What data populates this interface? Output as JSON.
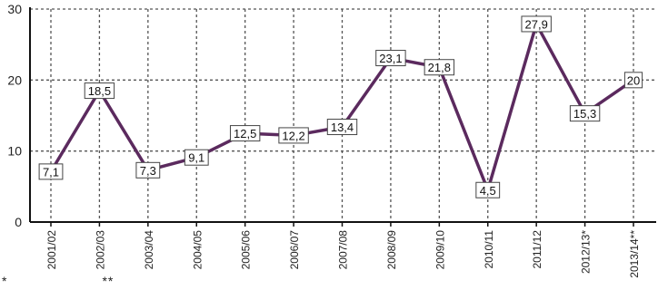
{
  "chart_data": {
    "type": "line",
    "title": "",
    "xlabel": "",
    "ylabel": "",
    "categories": [
      "2001/02",
      "2002/03",
      "2003/04",
      "2004/05",
      "2005/06",
      "2006/07",
      "2007/08",
      "2008/09",
      "2009/10",
      "2010/11",
      "2011/12",
      "2012/13*",
      "2013/14**"
    ],
    "series": [
      {
        "values": [
          7.1,
          18.5,
          7.3,
          9.1,
          12.5,
          12.2,
          13.4,
          23.1,
          21.8,
          4.5,
          27.9,
          15.3,
          20
        ],
        "labels": [
          "7,1",
          "18,5",
          "7,3",
          "9,1",
          "12,5",
          "12,2",
          "13,4",
          "23,1",
          "21,8",
          "4,5",
          "27,9",
          "15,3",
          "20"
        ]
      }
    ],
    "ylim": [
      0,
      30
    ],
    "yticks": [
      0,
      10,
      20,
      30
    ],
    "grid": true,
    "colors": {
      "line": "#5b2a5e",
      "grid": "#555555",
      "axis": "#111111",
      "label_border": "#444444"
    }
  },
  "footnotes": {
    "first": "*",
    "second": "**"
  }
}
